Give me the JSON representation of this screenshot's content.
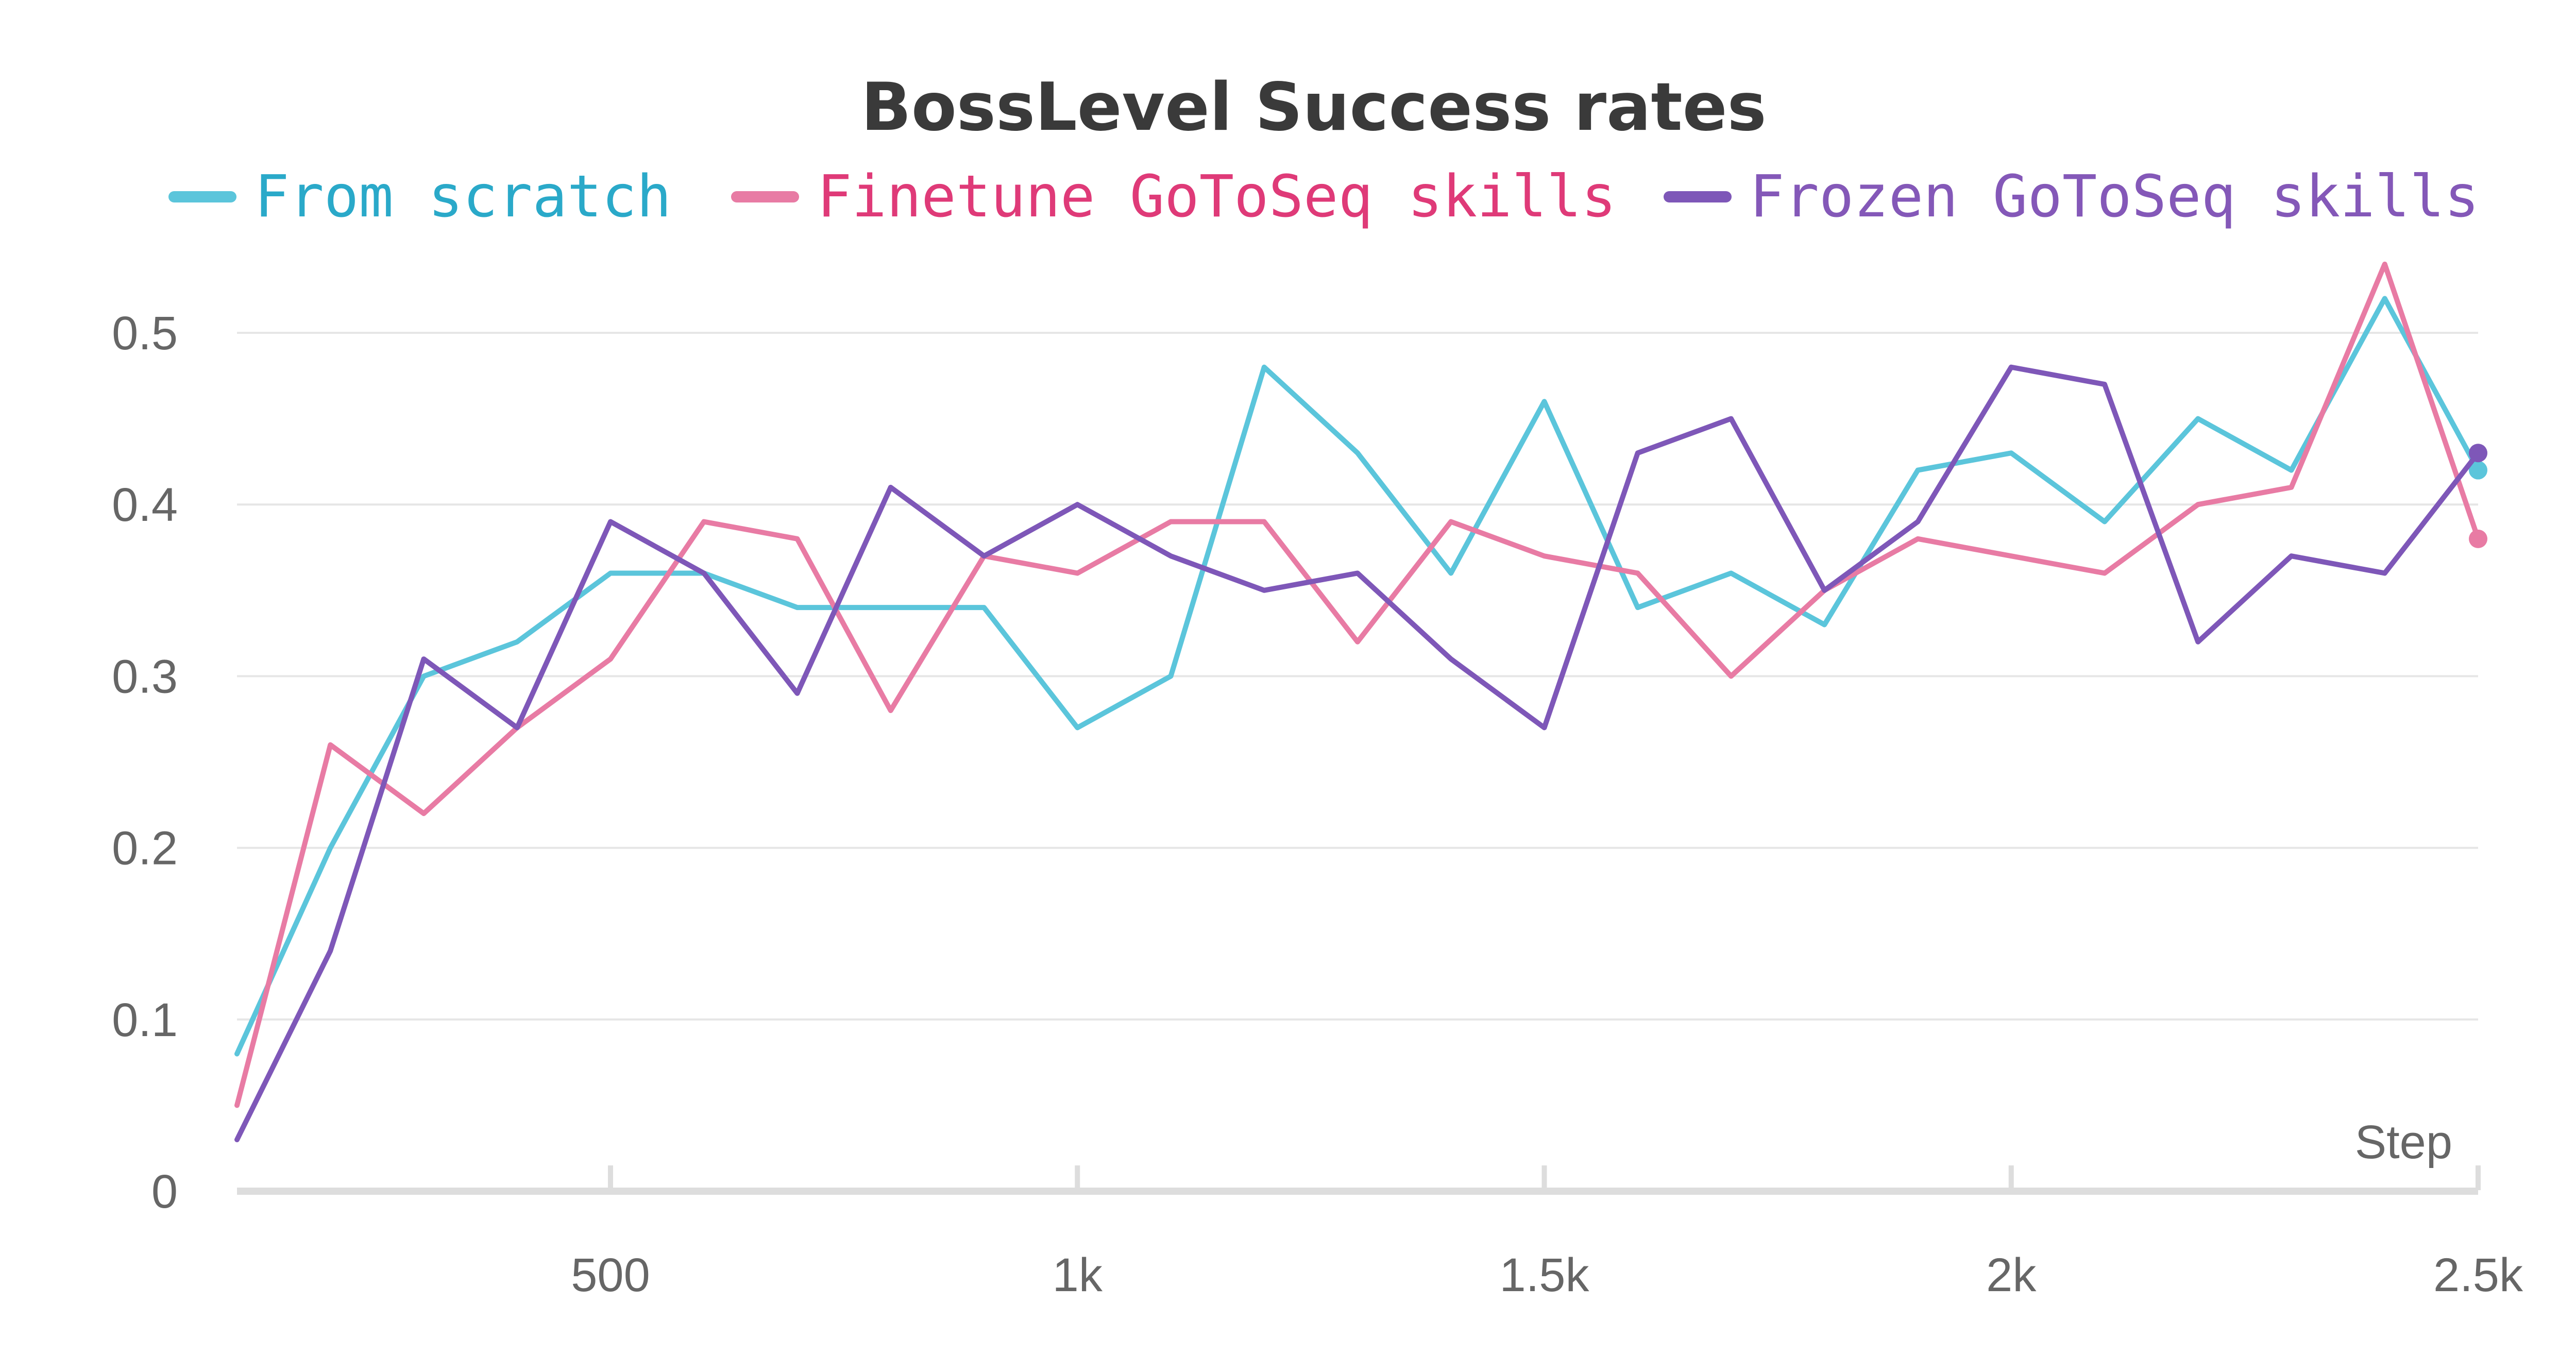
{
  "chart_data": {
    "type": "line",
    "title": "BossLevel Success rates",
    "xlabel": "Step",
    "ylabel": "",
    "xlim": [
      100,
      2500
    ],
    "ylim": [
      0,
      0.55
    ],
    "x_ticks": [
      500,
      1000,
      1500,
      2000,
      2500
    ],
    "x_tick_labels": [
      "500",
      "1k",
      "1.5k",
      "2k",
      "2.5k"
    ],
    "y_ticks": [
      0,
      0.1,
      0.2,
      0.3,
      0.4,
      0.5
    ],
    "y_tick_labels": [
      "0",
      "0.1",
      "0.2",
      "0.3",
      "0.4",
      "0.5"
    ],
    "grid": true,
    "legend_position": "top",
    "x": [
      100,
      200,
      300,
      400,
      500,
      600,
      700,
      800,
      900,
      1000,
      1100,
      1200,
      1300,
      1400,
      1500,
      1600,
      1700,
      1800,
      1900,
      2000,
      2100,
      2200,
      2300,
      2400,
      2500
    ],
    "series": [
      {
        "name": "From scratch",
        "color": "#5bc5db",
        "text_color": "#2aa9c9",
        "values": [
          0.08,
          0.2,
          0.3,
          0.32,
          0.36,
          0.36,
          0.34,
          0.34,
          0.34,
          0.27,
          0.3,
          0.48,
          0.43,
          0.36,
          0.46,
          0.34,
          0.36,
          0.33,
          0.42,
          0.43,
          0.39,
          0.45,
          0.42,
          0.52,
          0.42
        ]
      },
      {
        "name": "Finetune GoToSeq skills",
        "color": "#e87ba4",
        "text_color": "#df3a78",
        "values": [
          0.05,
          0.26,
          0.22,
          0.27,
          0.31,
          0.39,
          0.38,
          0.28,
          0.37,
          0.36,
          0.39,
          0.39,
          0.32,
          0.39,
          0.37,
          0.36,
          0.3,
          0.35,
          0.38,
          0.37,
          0.36,
          0.4,
          0.41,
          0.54,
          0.38
        ]
      },
      {
        "name": "Frozen GoToSeq skills",
        "color": "#7e57b8",
        "text_color": "#8458b8",
        "values": [
          0.03,
          0.14,
          0.31,
          0.27,
          0.39,
          0.36,
          0.29,
          0.41,
          0.37,
          0.4,
          0.37,
          0.35,
          0.36,
          0.31,
          0.27,
          0.43,
          0.45,
          0.35,
          0.39,
          0.48,
          0.47,
          0.32,
          0.37,
          0.36,
          0.43
        ]
      }
    ]
  }
}
